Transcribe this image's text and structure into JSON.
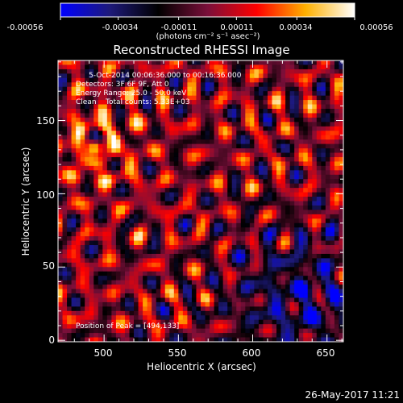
{
  "chart_data": {
    "type": "heatmap",
    "title": "Reconstructed RHESSI Image",
    "colorbar": {
      "ticks": [
        "-0.00056",
        "-0.00034",
        "-0.00011",
        "0.00011",
        "0.00034",
        "0.00056"
      ],
      "range": [
        -0.00056,
        0.00056
      ],
      "colormap": [
        "#0000ff",
        "#1e1a7a",
        "#000000",
        "#7a0f3a",
        "#ff0000",
        "#ffb000",
        "#ffffff"
      ]
    },
    "unit_label": "(photons cm⁻² s⁻¹ asec⁻²)",
    "xlabel": "Heliocentric X (arcsec)",
    "ylabel": "Heliocentric Y (arcsec)",
    "xlim": [
      469,
      661
    ],
    "ylim": [
      -1,
      191
    ],
    "xticks": [
      500,
      550,
      600,
      650
    ],
    "yticks": [
      0,
      50,
      100,
      150
    ],
    "grid": false,
    "annotations": [
      "5-Oct-2014 00:06:36.000 to 00:16:36.000",
      "Detectors: 3F 6F 9F, Att 0",
      "Energy Range: 25.0 - 50.0 keV",
      "Clean    Total counts: 5.33E+03"
    ],
    "peak_label": "Position of Peak = [494,133]",
    "peak": [
      494,
      133
    ]
  },
  "footer": {
    "timestamp": "26-May-2017 11:21"
  }
}
